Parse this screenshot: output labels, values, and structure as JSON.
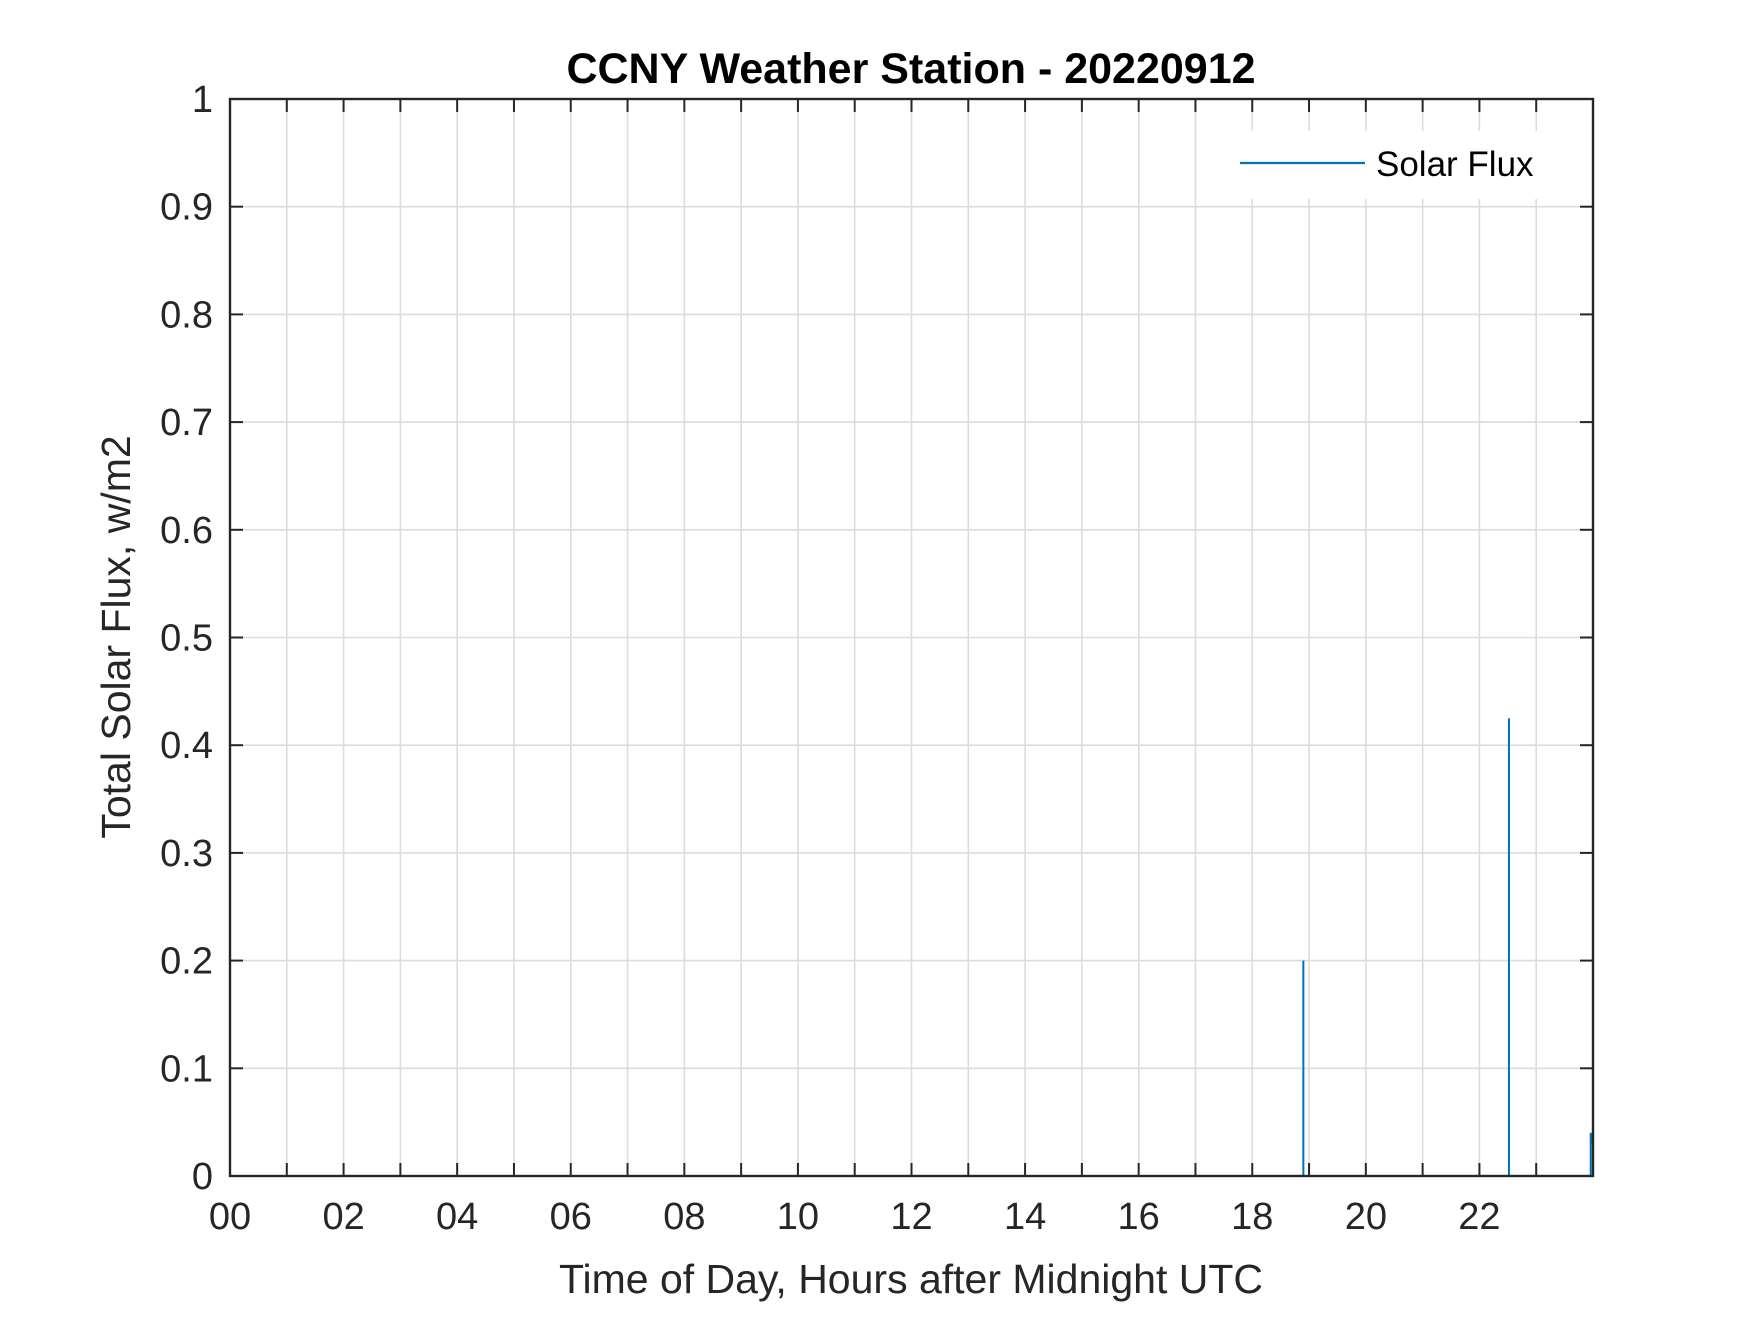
{
  "chart_data": {
    "type": "line",
    "title": "CCNY Weather Station - 20220912",
    "xlabel": "Time of Day, Hours after Midnight UTC",
    "ylabel": "Total Solar Flux, w/m2",
    "xlim": [
      0,
      24
    ],
    "ylim": [
      0,
      1
    ],
    "xticks": [
      0,
      2,
      4,
      6,
      8,
      10,
      12,
      14,
      16,
      18,
      20,
      22
    ],
    "xtick_labels": [
      "00",
      "02",
      "04",
      "06",
      "08",
      "10",
      "12",
      "14",
      "16",
      "18",
      "20",
      "22"
    ],
    "yticks": [
      0,
      0.1,
      0.2,
      0.3,
      0.4,
      0.5,
      0.6,
      0.7,
      0.8,
      0.9,
      1
    ],
    "ytick_labels": [
      "0",
      "0.1",
      "0.2",
      "0.3",
      "0.4",
      "0.5",
      "0.6",
      "0.7",
      "0.8",
      "0.9",
      "1"
    ],
    "grid": true,
    "legend_position": "top-right",
    "series": [
      {
        "name": "Solar Flux",
        "color": "#0072bd",
        "x": [
          0,
          18.9,
          18.9,
          18.9,
          22.52,
          22.52,
          22.52,
          23.96,
          23.96,
          24
        ],
        "y": [
          0,
          0,
          0.2,
          0,
          0,
          0.425,
          0,
          0,
          0.04,
          0.03
        ]
      }
    ]
  }
}
